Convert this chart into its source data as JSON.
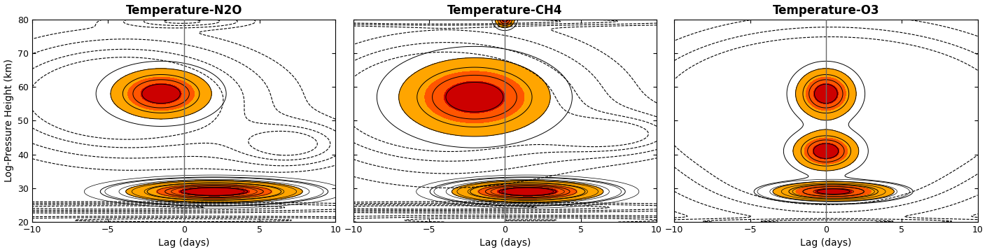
{
  "titles": [
    "Temperature-N2O",
    "Temperature-CH4",
    "Temperature-O3"
  ],
  "xlabel": "Lag (days)",
  "ylabel": "Log-Pressure Height (km)",
  "xlim": [
    -10,
    10
  ],
  "ylim": [
    20,
    80
  ],
  "yticks": [
    20,
    30,
    40,
    50,
    60,
    70,
    80
  ],
  "xticks": [
    -10,
    -5,
    0,
    5,
    10
  ],
  "bg_color": "#ffffff"
}
